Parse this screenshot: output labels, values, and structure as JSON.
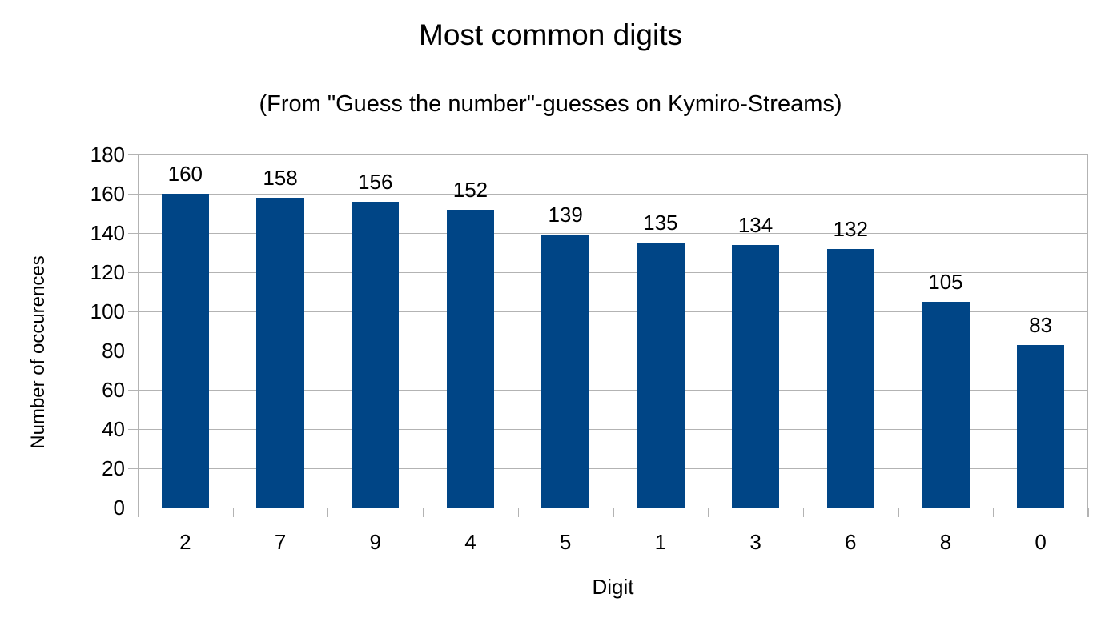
{
  "chart": {
    "title": "Most common digits",
    "subtitle": "(From \"Guess the number\"-guesses on Kymiro-Streams)",
    "xlabel": "Digit",
    "ylabel": "Number of occurences",
    "bar_color": "#004586",
    "grid_color": "#b3b3b3"
  },
  "chart_data": {
    "type": "bar",
    "title": "Most common digits",
    "subtitle": "(From \"Guess the number\"-guesses on Kymiro-Streams)",
    "xlabel": "Digit",
    "ylabel": "Number of occurences",
    "categories": [
      "2",
      "7",
      "9",
      "4",
      "5",
      "1",
      "3",
      "6",
      "8",
      "0"
    ],
    "values": [
      160,
      158,
      156,
      152,
      139,
      135,
      134,
      132,
      105,
      83
    ],
    "data_labels": [
      "160",
      "158",
      "156",
      "152",
      "139",
      "135",
      "134",
      "132",
      "105",
      "83"
    ],
    "ylim": [
      0,
      180
    ],
    "yticks": [
      "0",
      "20",
      "40",
      "60",
      "80",
      "100",
      "120",
      "140",
      "160",
      "180"
    ],
    "grid": true,
    "legend": null
  }
}
